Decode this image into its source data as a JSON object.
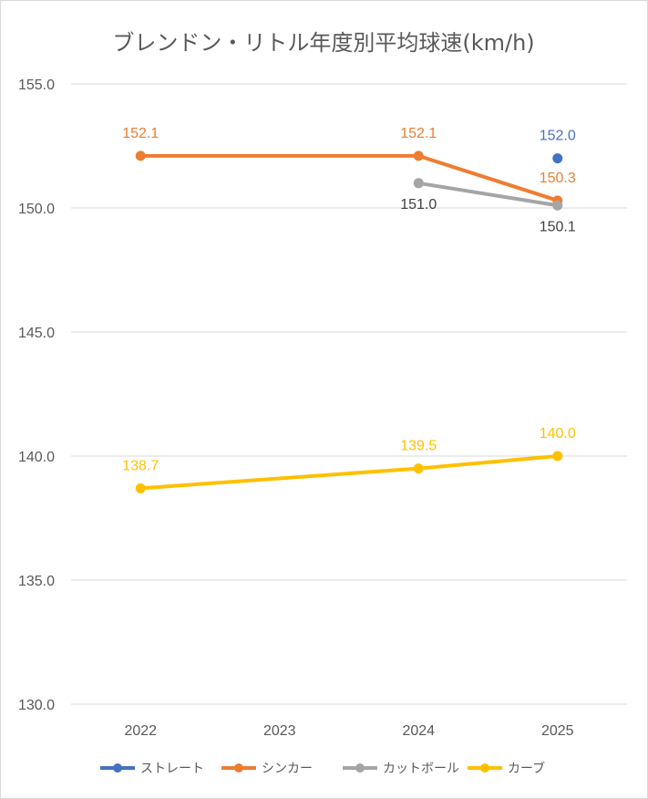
{
  "chart_data": {
    "type": "line",
    "title": "ブレンドン・リトル年度別平均球速(km/h)",
    "xlabel": "",
    "ylabel": "",
    "categories": [
      "2022",
      "2023",
      "2024",
      "2025"
    ],
    "ylim": [
      130,
      155
    ],
    "yticks": [
      "130.0",
      "135.0",
      "140.0",
      "145.0",
      "150.0",
      "155.0"
    ],
    "grid": true,
    "legend_position": "bottom",
    "series": [
      {
        "name": "ストレート",
        "color": "#4472C4",
        "values": [
          null,
          null,
          null,
          152.0
        ],
        "labels": [
          null,
          null,
          null,
          "152.0"
        ],
        "label_color": "#4472C4",
        "label_pos": [
          "above",
          "above",
          "above",
          "above"
        ]
      },
      {
        "name": "シンカー",
        "color": "#ED7D31",
        "values": [
          152.1,
          null,
          152.1,
          150.3
        ],
        "labels": [
          "152.1",
          null,
          "152.1",
          "150.3"
        ],
        "label_color": "#ED7D31",
        "label_pos": [
          "above",
          "above",
          "above",
          "above"
        ]
      },
      {
        "name": "カットボール",
        "color": "#A5A5A5",
        "values": [
          null,
          null,
          151.0,
          150.1
        ],
        "labels": [
          null,
          null,
          "151.0",
          "150.1"
        ],
        "label_color": "#404040",
        "label_pos": [
          "below",
          "below",
          "below",
          "below"
        ]
      },
      {
        "name": "カーブ",
        "color": "#FFC000",
        "values": [
          138.7,
          null,
          139.5,
          140.0
        ],
        "labels": [
          "138.7",
          null,
          "139.5",
          "140.0"
        ],
        "label_color": "#FFC000",
        "label_pos": [
          "above",
          "above",
          "above",
          "above"
        ]
      }
    ]
  }
}
